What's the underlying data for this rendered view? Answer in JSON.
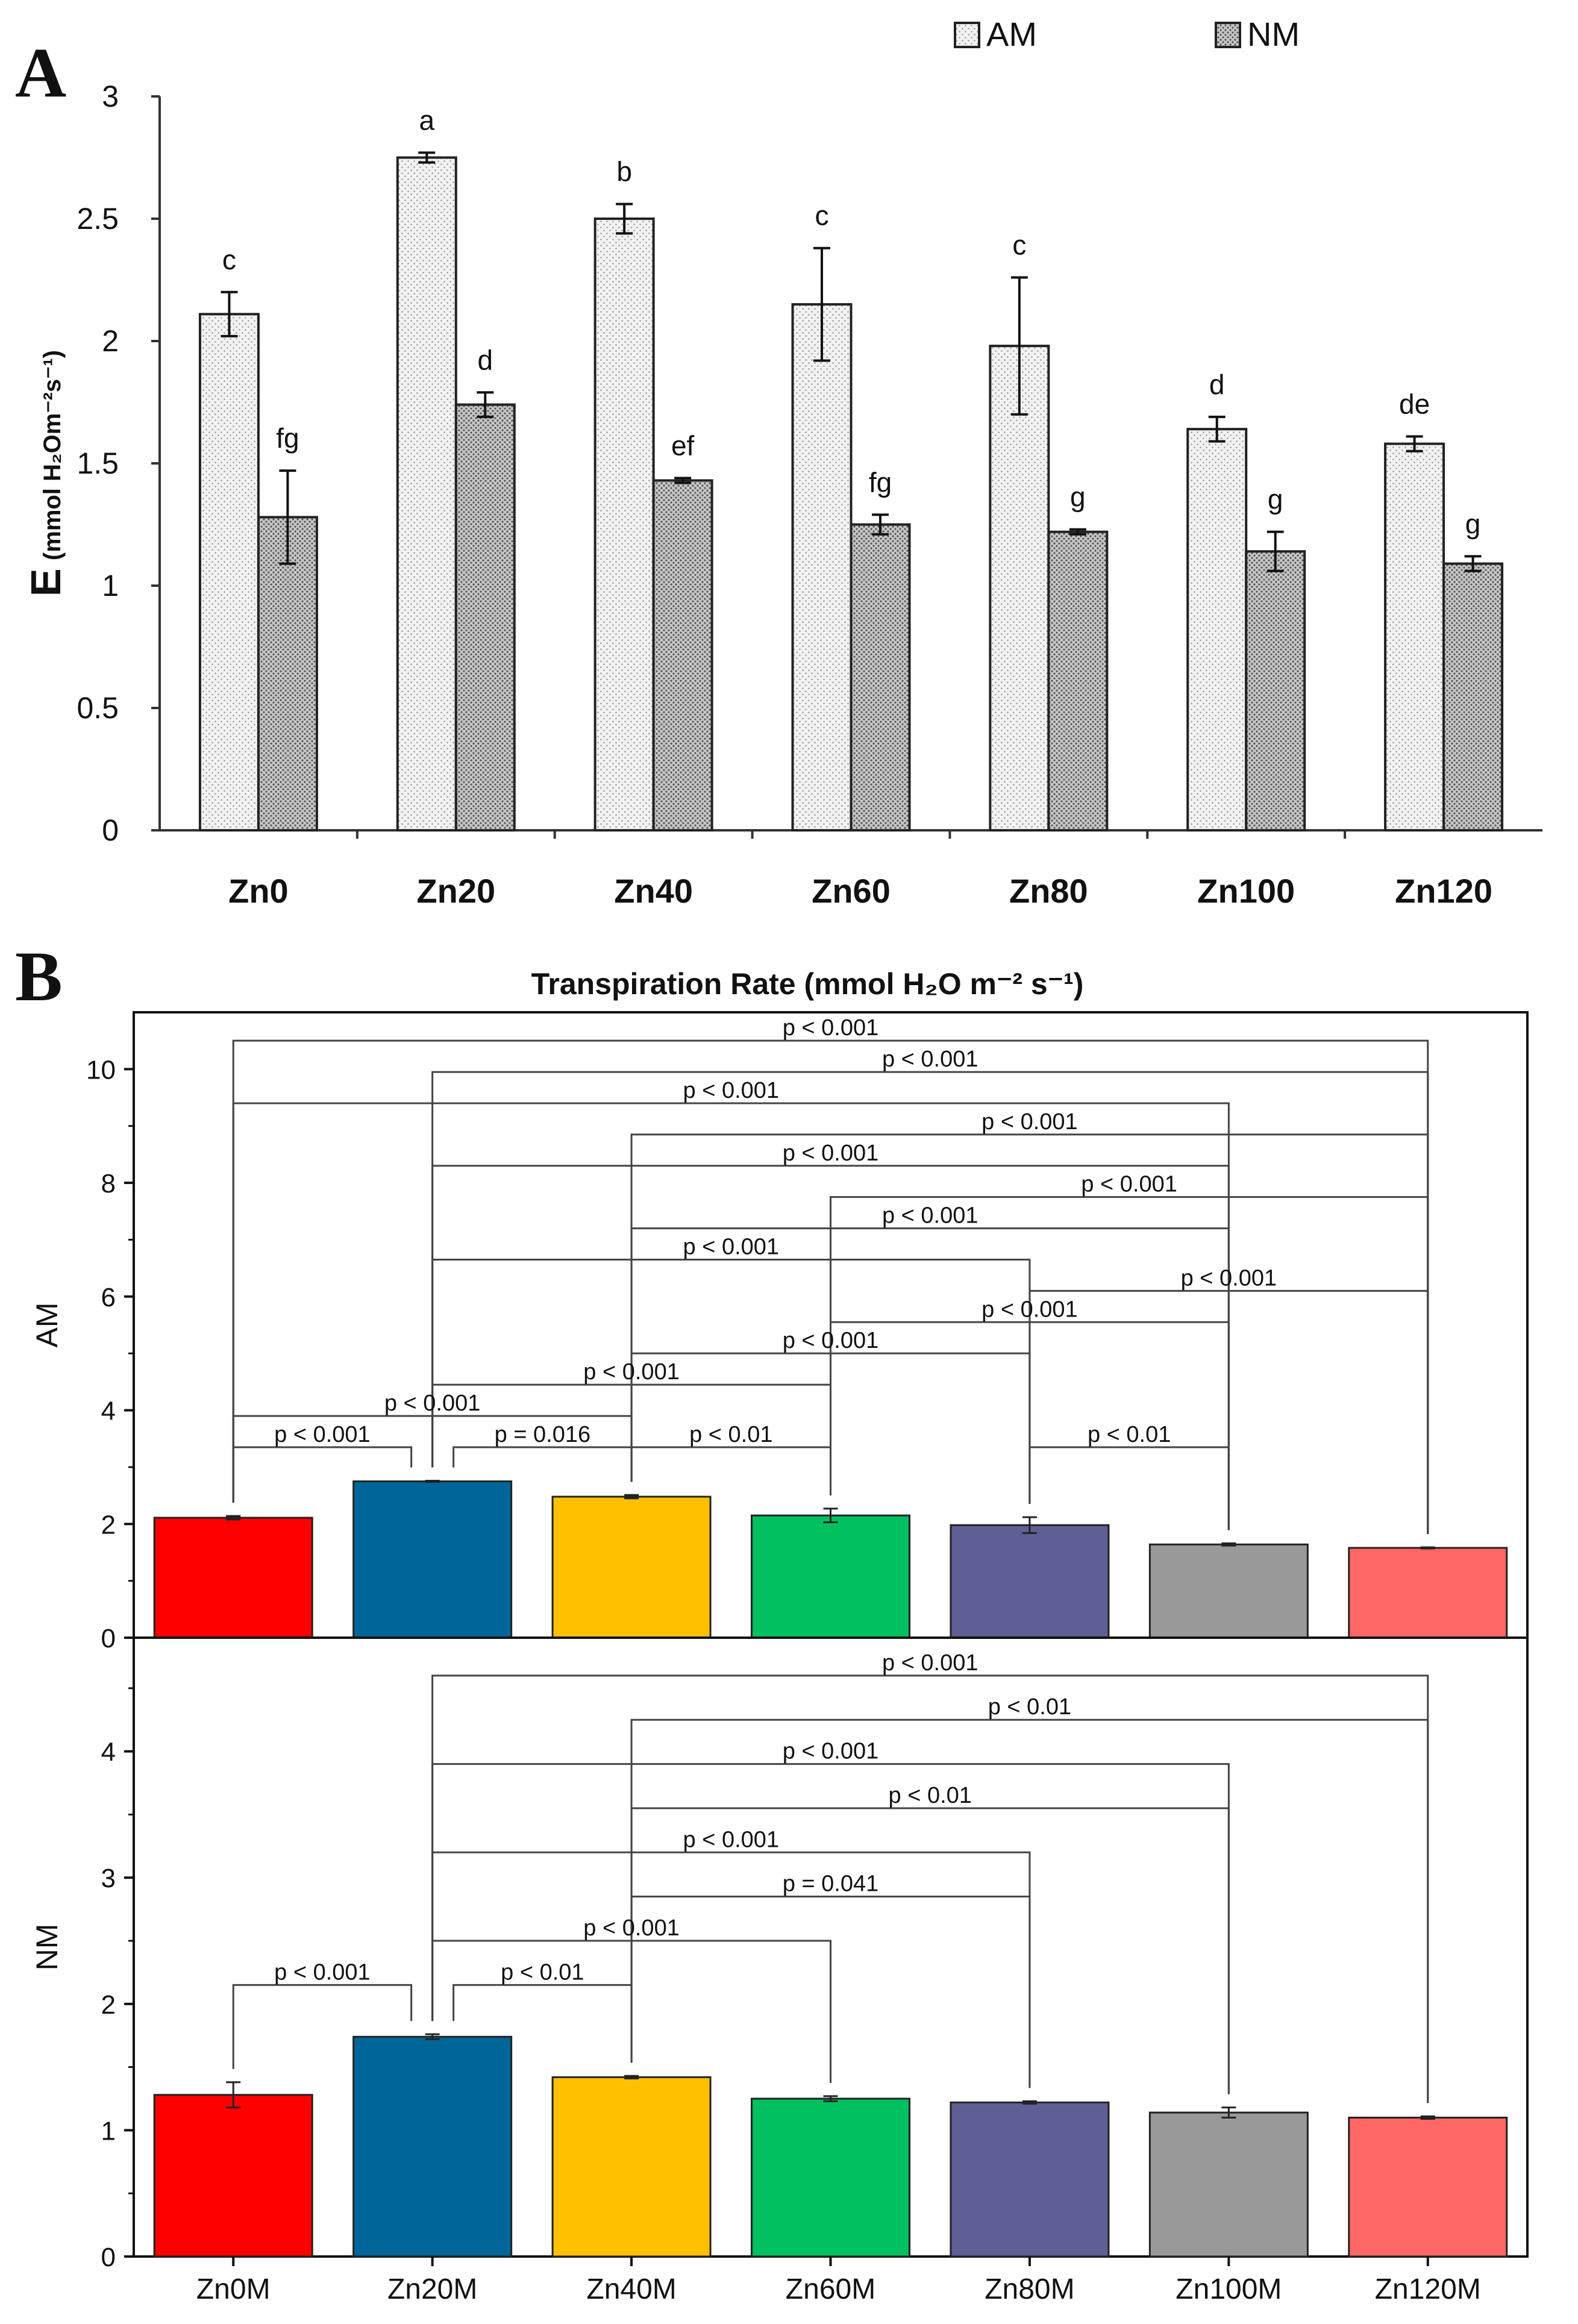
{
  "chart_data": [
    {
      "panel": "A",
      "type": "bar",
      "title": "",
      "xlabel": "",
      "ylabel": {
        "main": "E",
        "unit": "(mmol H₂Om⁻²s⁻¹)"
      },
      "ylim": [
        0,
        3
      ],
      "yticks": [
        "0",
        "0.5",
        "1",
        "1.5",
        "2",
        "2.5",
        "3"
      ],
      "categories": [
        "Zn0",
        "Zn20",
        "Zn40",
        "Zn60",
        "Zn80",
        "Zn100",
        "Zn120"
      ],
      "legend": {
        "placement": "top-right"
      },
      "series": [
        {
          "name": "AM",
          "color": "#e4e4e4",
          "pattern": "fine-dots",
          "values": [
            2.11,
            2.75,
            2.5,
            2.15,
            1.98,
            1.64,
            1.58
          ],
          "errors": [
            0.09,
            0.02,
            0.06,
            0.23,
            0.28,
            0.05,
            0.03
          ],
          "letters": [
            "c",
            "a",
            "b",
            "c",
            "c",
            "d",
            "de"
          ]
        },
        {
          "name": "NM",
          "color": "#b8b8b8",
          "pattern": "coarse-dots",
          "values": [
            1.28,
            1.74,
            1.43,
            1.25,
            1.22,
            1.14,
            1.09
          ],
          "errors": [
            0.19,
            0.05,
            0.01,
            0.04,
            0.01,
            0.08,
            0.03
          ],
          "letters": [
            "fg",
            "d",
            "ef",
            "fg",
            "g",
            "g",
            "g"
          ]
        }
      ]
    },
    {
      "panel": "B",
      "type": "bar",
      "title": "Transpiration Rate (mmol H₂O m⁻² s⁻¹)",
      "categories": [
        "Zn0M",
        "Zn20M",
        "Zn40M",
        "Zn60M",
        "Zn80M",
        "Zn100M",
        "Zn120M"
      ],
      "colors": [
        "#ff0000",
        "#006699",
        "#ffc000",
        "#00c060",
        "#5f5f96",
        "#999999",
        "#ff6666"
      ],
      "subplots": [
        {
          "ylabel": "AM",
          "ylim": [
            0,
            11
          ],
          "yticks": [
            "0",
            "2",
            "4",
            "6",
            "8",
            "10"
          ],
          "values": [
            2.11,
            2.75,
            2.48,
            2.15,
            1.98,
            1.64,
            1.58
          ],
          "errors": [
            0.03,
            0.01,
            0.03,
            0.12,
            0.14,
            0.02,
            0.01
          ],
          "comparisons": [
            {
              "from": 0,
              "to": 6,
              "y": 10.5,
              "label": "p < 0.001"
            },
            {
              "from": 1,
              "to": 6,
              "y": 9.95,
              "label": "p < 0.001"
            },
            {
              "from": 0,
              "to": 5,
              "y": 9.4,
              "label": "p < 0.001"
            },
            {
              "from": 2,
              "to": 6,
              "y": 8.85,
              "label": "p < 0.001"
            },
            {
              "from": 1,
              "to": 5,
              "y": 8.3,
              "label": "p < 0.001"
            },
            {
              "from": 3,
              "to": 6,
              "y": 7.75,
              "label": "p < 0.001"
            },
            {
              "from": 2,
              "to": 5,
              "y": 7.2,
              "label": "p < 0.001"
            },
            {
              "from": 1,
              "to": 4,
              "y": 6.65,
              "label": "p < 0.001"
            },
            {
              "from": 4,
              "to": 6,
              "y": 6.1,
              "label": "p < 0.001"
            },
            {
              "from": 3,
              "to": 5,
              "y": 5.55,
              "label": "p < 0.001"
            },
            {
              "from": 2,
              "to": 4,
              "y": 5.0,
              "label": "p < 0.001"
            },
            {
              "from": 1,
              "to": 3,
              "y": 4.45,
              "label": "p < 0.001"
            },
            {
              "from": 0,
              "to": 2,
              "y": 3.9,
              "label": "p < 0.001"
            },
            {
              "from": 0,
              "to": 1,
              "y": 3.35,
              "label": "p < 0.001"
            },
            {
              "from": 1,
              "to": 2,
              "y": 3.35,
              "label": "p = 0.016"
            },
            {
              "from": 2,
              "to": 3,
              "y": 3.35,
              "label": "p < 0.01"
            },
            {
              "from": 4,
              "to": 5,
              "y": 3.35,
              "label": "p < 0.01"
            }
          ]
        },
        {
          "ylabel": "NM",
          "ylim": [
            0,
            4.9
          ],
          "yticks": [
            "0",
            "1",
            "2",
            "3",
            "4"
          ],
          "values": [
            1.28,
            1.74,
            1.42,
            1.25,
            1.22,
            1.14,
            1.1
          ],
          "errors": [
            0.1,
            0.02,
            0.01,
            0.02,
            0.01,
            0.04,
            0.01
          ],
          "comparisons": [
            {
              "from": 1,
              "to": 6,
              "y": 4.6,
              "label": "p < 0.001"
            },
            {
              "from": 2,
              "to": 6,
              "y": 4.25,
              "label": "p < 0.01"
            },
            {
              "from": 1,
              "to": 5,
              "y": 3.9,
              "label": "p < 0.001"
            },
            {
              "from": 2,
              "to": 5,
              "y": 3.55,
              "label": "p < 0.01"
            },
            {
              "from": 1,
              "to": 4,
              "y": 3.2,
              "label": "p < 0.001"
            },
            {
              "from": 2,
              "to": 4,
              "y": 2.85,
              "label": "p = 0.041"
            },
            {
              "from": 1,
              "to": 3,
              "y": 2.5,
              "label": "p < 0.001"
            },
            {
              "from": 0,
              "to": 1,
              "y": 2.15,
              "label": "p < 0.001"
            },
            {
              "from": 1,
              "to": 2,
              "y": 2.15,
              "label": "p < 0.01"
            }
          ]
        }
      ]
    }
  ]
}
